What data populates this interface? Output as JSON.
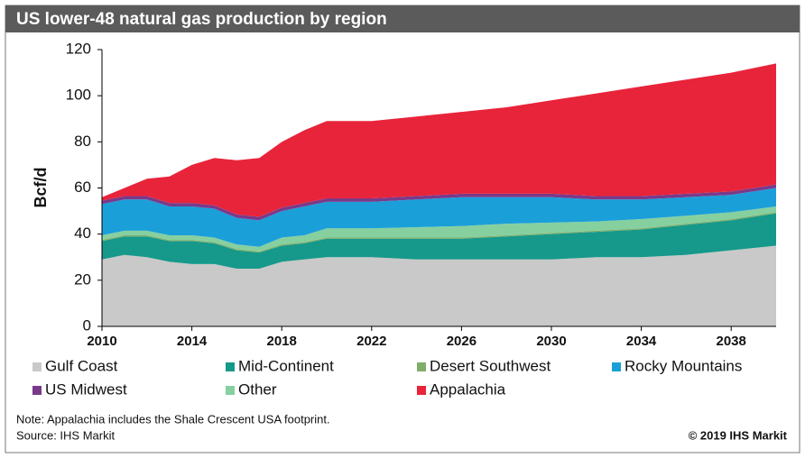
{
  "chart_data": {
    "type": "stacked_area",
    "title": "US lower-48 natural gas production by region",
    "y_label": "Bcf/d",
    "x": [
      2010,
      2011,
      2012,
      2013,
      2014,
      2015,
      2016,
      2017,
      2018,
      2019,
      2020,
      2022,
      2024,
      2026,
      2028,
      2030,
      2032,
      2034,
      2036,
      2038,
      2040
    ],
    "xlim": [
      2010,
      2040
    ],
    "xticks": [
      2010,
      2014,
      2018,
      2022,
      2026,
      2030,
      2034,
      2038
    ],
    "ylim": [
      0,
      120
    ],
    "yticks": [
      0,
      20,
      40,
      60,
      80,
      100,
      120
    ],
    "grid": false,
    "series": [
      {
        "name": "Gulf Coast",
        "color": "#c9c9c9",
        "values": [
          29,
          31,
          30,
          28,
          27,
          27,
          25,
          25,
          28,
          29,
          30,
          30,
          29,
          29,
          29,
          29,
          30,
          30,
          31,
          33,
          35
        ]
      },
      {
        "name": "Mid-Continent",
        "color": "#16998a",
        "values": [
          8,
          8,
          9,
          9,
          10,
          9,
          8,
          7,
          7,
          7,
          8,
          8,
          9,
          9,
          10,
          11,
          11,
          12,
          13,
          13,
          14
        ]
      },
      {
        "name": "Desert Southwest",
        "color": "#7fae6a",
        "values": [
          0.5,
          0.5,
          0.5,
          0.5,
          0.5,
          0.5,
          0.5,
          0.5,
          0.5,
          0.5,
          0.5,
          0.5,
          0.5,
          0.5,
          0.5,
          0.5,
          0.5,
          0.5,
          0.5,
          0.5,
          0.5
        ]
      },
      {
        "name": "Other",
        "color": "#86d0a0",
        "values": [
          2,
          2,
          2,
          2,
          2,
          2,
          2,
          2,
          3,
          3,
          4,
          4,
          4.5,
          5,
          5,
          4.5,
          4,
          4,
          3.5,
          3,
          2.5
        ]
      },
      {
        "name": "Rocky Mountains",
        "color": "#1b9fd9",
        "values": [
          13.5,
          13.5,
          13.5,
          12.5,
          12.5,
          12.5,
          11.5,
          11.5,
          11.5,
          12.5,
          11.5,
          11.5,
          12,
          12.5,
          11.5,
          11,
          9.5,
          8.5,
          8,
          7.5,
          8
        ]
      },
      {
        "name": "US Midwest",
        "color": "#7a3a8a",
        "values": [
          1.5,
          1.5,
          1.5,
          1.5,
          1.5,
          1.5,
          1.5,
          1.5,
          1.5,
          1.5,
          1.5,
          1.5,
          1.5,
          1.5,
          1.5,
          1.5,
          1.5,
          1.5,
          1.5,
          1.5,
          1.5
        ]
      },
      {
        "name": "Appalachia",
        "color": "#e8243a",
        "values": [
          1.5,
          3.5,
          7.5,
          11.5,
          16.5,
          20.5,
          23.5,
          25.5,
          28.5,
          31.5,
          33.5,
          33.5,
          34.5,
          35.5,
          37.5,
          40.5,
          44.5,
          47.5,
          49.5,
          51.5,
          52.5
        ]
      }
    ],
    "legend_order": [
      0,
      1,
      2,
      4,
      5,
      3,
      6
    ],
    "note": "Note: Appalachia includes the Shale Crescent USA footprint.",
    "source": "Source: IHS Markit",
    "copyright": "© 2019 IHS Markit"
  }
}
